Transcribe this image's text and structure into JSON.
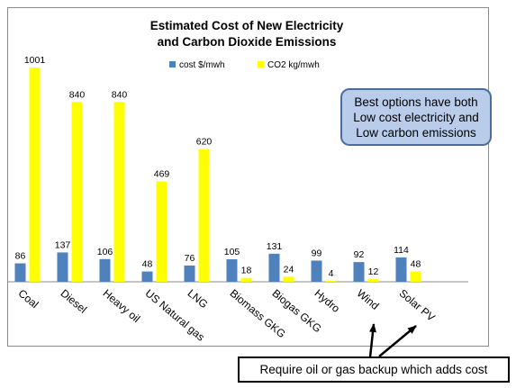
{
  "chart_data": {
    "type": "bar",
    "title": [
      "Estimated Cost of New Electricity",
      "and Carbon Dioxide Emissions"
    ],
    "categories": [
      "Coal",
      "Diesel",
      "Heavy oil",
      "US Natural gas",
      "LNG",
      "Biomass GKG",
      "Biogas GKG",
      "Hydro",
      "Wind",
      "Solar PV"
    ],
    "series": [
      {
        "name": "cost $/mwh",
        "color": "#4f81bd",
        "values": [
          86,
          137,
          106,
          48,
          76,
          105,
          131,
          99,
          92,
          114
        ]
      },
      {
        "name": "CO2 kg/mwh",
        "color": "#ffff00",
        "values": [
          1001,
          840,
          840,
          469,
          620,
          18,
          24,
          4,
          12,
          48
        ]
      }
    ],
    "legend_position": "top-right",
    "grid": false
  },
  "callout": {
    "lines": [
      "Best options have both",
      "Low cost electricity and",
      "Low carbon emissions"
    ]
  },
  "note": {
    "text": "Require oil or gas backup which adds cost"
  }
}
